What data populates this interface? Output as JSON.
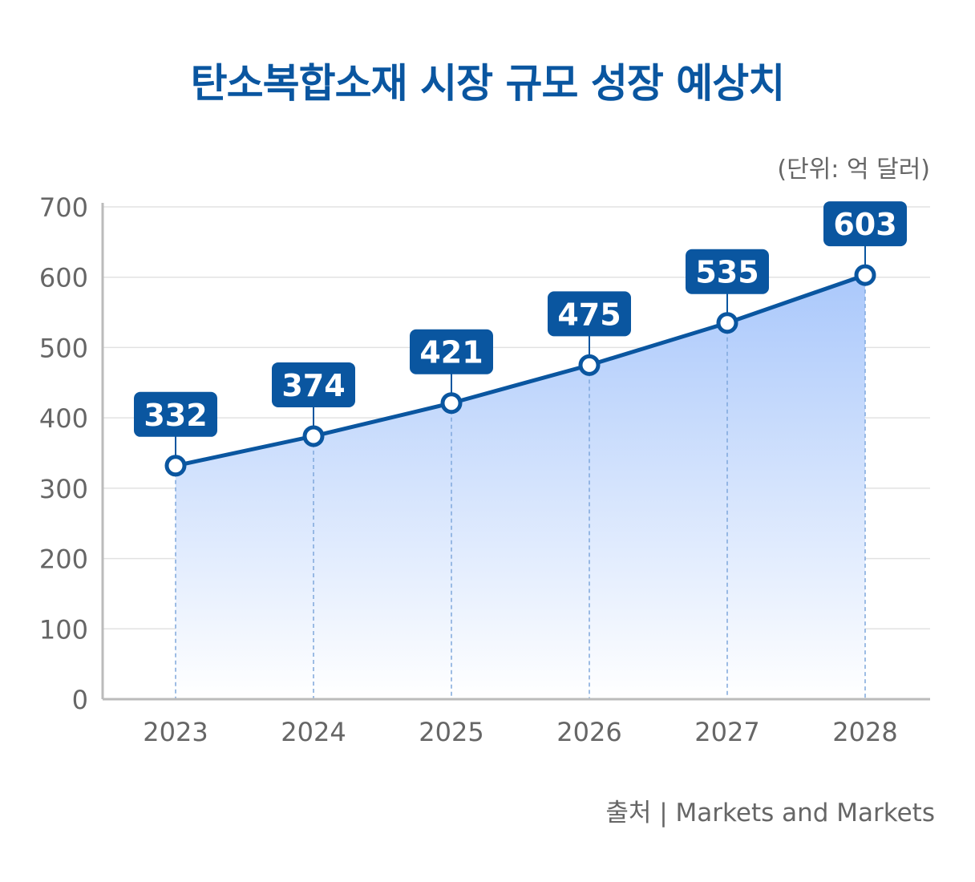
{
  "chart_data": {
    "type": "area",
    "title": "탄소복합소재 시장 규모 성장 예상치",
    "unit": "(단위: 억 달러)",
    "source": "출처 | Markets and Markets",
    "categories": [
      "2023",
      "2024",
      "2025",
      "2026",
      "2027",
      "2028"
    ],
    "values": [
      332,
      374,
      421,
      475,
      535,
      603
    ],
    "ylim": [
      0,
      700
    ],
    "yticks": [
      0,
      100,
      200,
      300,
      400,
      500,
      600,
      700
    ],
    "grid": true,
    "colors": {
      "line": "#0a56a0",
      "label_bg": "#0a56a0",
      "fill_top": "#aac8fb",
      "fill_bottom": "#ffffff",
      "title": "#0a56a0",
      "guide": "#7fa7dc"
    }
  }
}
